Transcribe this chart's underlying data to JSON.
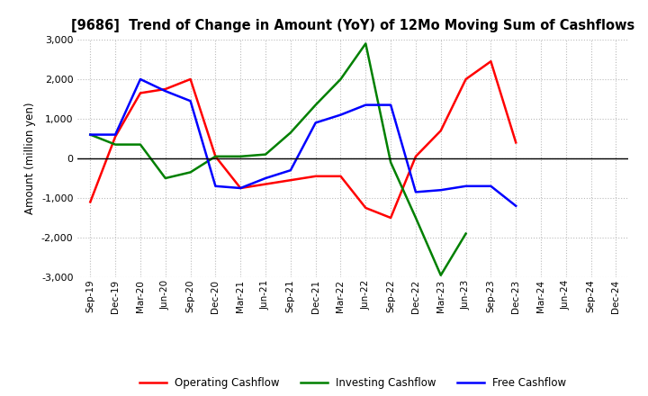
{
  "title": "[9686]  Trend of Change in Amount (YoY) of 12Mo Moving Sum of Cashflows",
  "ylabel": "Amount (million yen)",
  "xlabels": [
    "Sep-19",
    "Dec-19",
    "Mar-20",
    "Jun-20",
    "Sep-20",
    "Dec-20",
    "Mar-21",
    "Jun-21",
    "Sep-21",
    "Dec-21",
    "Mar-22",
    "Jun-22",
    "Sep-22",
    "Dec-22",
    "Mar-23",
    "Jun-23",
    "Sep-23",
    "Dec-23",
    "Mar-24",
    "Jun-24",
    "Sep-24",
    "Dec-24"
  ],
  "operating": [
    -1100,
    550,
    1650,
    1750,
    2000,
    50,
    -750,
    -650,
    -550,
    -450,
    -450,
    -1250,
    -1500,
    50,
    700,
    2000,
    2450,
    400,
    null,
    null,
    null,
    null
  ],
  "investing": [
    600,
    350,
    350,
    -500,
    -350,
    50,
    50,
    100,
    650,
    1350,
    2000,
    2900,
    -100,
    -1500,
    -2950,
    -1900,
    null,
    null,
    null,
    null,
    null,
    null
  ],
  "free": [
    600,
    600,
    2000,
    1700,
    1450,
    -700,
    -750,
    -500,
    -300,
    900,
    1100,
    1350,
    1350,
    -850,
    -800,
    -700,
    -700,
    -1200,
    null,
    null,
    null,
    null
  ],
  "ylim": [
    -3000,
    3000
  ],
  "yticks": [
    -3000,
    -2000,
    -1000,
    0,
    1000,
    2000,
    3000
  ],
  "operating_color": "#ff0000",
  "investing_color": "#008000",
  "free_color": "#0000ff",
  "bg_color": "#ffffff",
  "grid_color": "#aaaaaa"
}
